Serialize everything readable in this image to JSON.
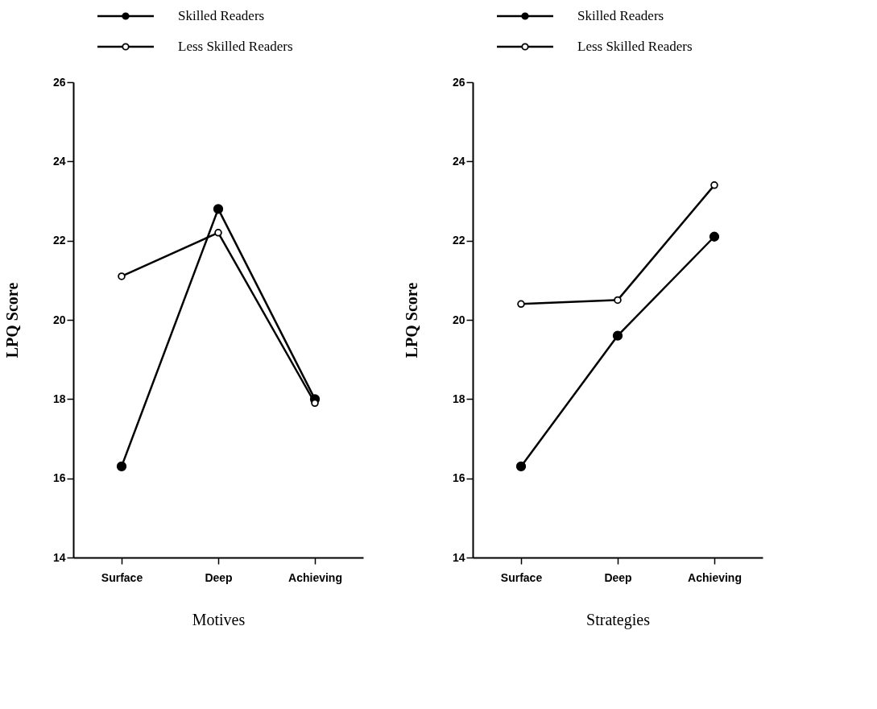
{
  "chart_data": [
    {
      "type": "line",
      "xlabel": "Motives",
      "ylabel": "LPQ Score",
      "categories": [
        "Surface",
        "Deep",
        "Achieving"
      ],
      "ylim": [
        14,
        26
      ],
      "yticks": [
        14,
        16,
        18,
        20,
        22,
        24,
        26
      ],
      "grid": false,
      "legend": "top",
      "marker": "circle",
      "line_style": "solid",
      "series": [
        {
          "name": "Skilled Readers",
          "color": "#000000",
          "values": [
            16.3,
            22.8,
            18.0
          ]
        },
        {
          "name": "Less Skilled Readers",
          "color": "#000000",
          "values": [
            21.1,
            22.2,
            17.9
          ]
        }
      ]
    },
    {
      "type": "line",
      "xlabel": "Strategies",
      "ylabel": "LPQ Score",
      "categories": [
        "Surface",
        "Deep",
        "Achieving"
      ],
      "ylim": [
        14,
        26
      ],
      "yticks": [
        14,
        16,
        18,
        20,
        22,
        24,
        26
      ],
      "grid": false,
      "legend": "top",
      "marker": "circle",
      "line_style": "solid",
      "series": [
        {
          "name": "Skilled Readers",
          "color": "#000000",
          "values": [
            16.3,
            19.6,
            22.1
          ]
        },
        {
          "name": "Less Skilled Readers",
          "color": "#000000",
          "values": [
            20.4,
            20.5,
            23.4
          ]
        }
      ]
    }
  ]
}
